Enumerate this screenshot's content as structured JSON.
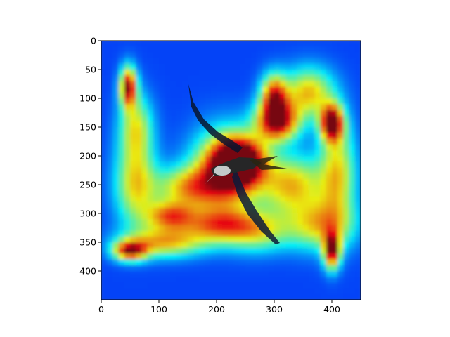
{
  "chart_data": {
    "type": "heatmap",
    "title": "",
    "subtitle": "",
    "xlabel": "",
    "ylabel": "",
    "image_size": [
      450,
      450
    ],
    "xlim": [
      0,
      450
    ],
    "ylim": [
      450,
      0
    ],
    "y_axis_inverted": true,
    "x_ticks": [
      0,
      100,
      200,
      300,
      400
    ],
    "y_ticks": [
      0,
      50,
      100,
      150,
      200,
      250,
      300,
      350,
      400
    ],
    "x_tick_labels": [
      "0",
      "100",
      "200",
      "300",
      "400"
    ],
    "y_tick_labels": [
      "0",
      "50",
      "100",
      "150",
      "200",
      "250",
      "300",
      "350",
      "400"
    ],
    "grid": false,
    "colormap": "jet",
    "overlay_alpha": 0.75,
    "background_color": "#2b4fb6",
    "subject": "frigatebird in flight",
    "hotspots": [
      {
        "x": 240,
        "y": 210,
        "intensity": 1.0,
        "sx": 30,
        "sy": 28
      },
      {
        "x": 400,
        "y": 143,
        "intensity": 0.95,
        "sx": 14,
        "sy": 22
      },
      {
        "x": 305,
        "y": 140,
        "intensity": 0.9,
        "sx": 26,
        "sy": 24
      },
      {
        "x": 300,
        "y": 95,
        "intensity": 0.7,
        "sx": 16,
        "sy": 26
      },
      {
        "x": 47,
        "y": 80,
        "intensity": 0.85,
        "sx": 10,
        "sy": 24
      },
      {
        "x": 400,
        "y": 365,
        "intensity": 0.85,
        "sx": 10,
        "sy": 22
      },
      {
        "x": 50,
        "y": 365,
        "intensity": 0.75,
        "sx": 20,
        "sy": 12
      },
      {
        "x": 215,
        "y": 230,
        "intensity": 0.7,
        "sx": 40,
        "sy": 50
      },
      {
        "x": 120,
        "y": 305,
        "intensity": 0.6,
        "sx": 30,
        "sy": 18
      },
      {
        "x": 200,
        "y": 320,
        "intensity": 0.5,
        "sx": 40,
        "sy": 20
      },
      {
        "x": 330,
        "y": 250,
        "intensity": 0.55,
        "sx": 40,
        "sy": 35
      },
      {
        "x": 60,
        "y": 250,
        "intensity": 0.5,
        "sx": 25,
        "sy": 50
      },
      {
        "x": 360,
        "y": 90,
        "intensity": 0.55,
        "sx": 30,
        "sy": 30
      },
      {
        "x": 410,
        "y": 230,
        "intensity": 0.5,
        "sx": 22,
        "sy": 60
      },
      {
        "x": 110,
        "y": 350,
        "intensity": 0.55,
        "sx": 50,
        "sy": 18
      },
      {
        "x": 380,
        "y": 320,
        "intensity": 0.5,
        "sx": 40,
        "sy": 30
      },
      {
        "x": 150,
        "y": 255,
        "intensity": 0.5,
        "sx": 40,
        "sy": 25
      },
      {
        "x": 60,
        "y": 150,
        "intensity": 0.45,
        "sx": 20,
        "sy": 40
      },
      {
        "x": 270,
        "y": 330,
        "intensity": 0.45,
        "sx": 40,
        "sy": 25
      }
    ]
  }
}
